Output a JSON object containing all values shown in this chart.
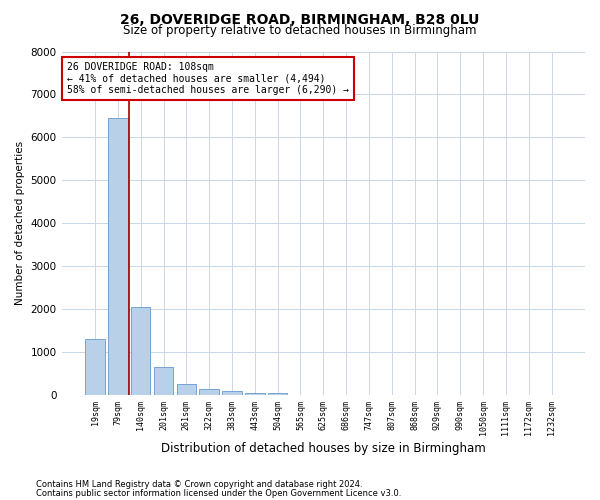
{
  "title1": "26, DOVERIDGE ROAD, BIRMINGHAM, B28 0LU",
  "title2": "Size of property relative to detached houses in Birmingham",
  "xlabel": "Distribution of detached houses by size in Birmingham",
  "ylabel": "Number of detached properties",
  "categories": [
    "19sqm",
    "79sqm",
    "140sqm",
    "201sqm",
    "261sqm",
    "322sqm",
    "383sqm",
    "443sqm",
    "504sqm",
    "565sqm",
    "625sqm",
    "686sqm",
    "747sqm",
    "807sqm",
    "868sqm",
    "929sqm",
    "990sqm",
    "1050sqm",
    "1111sqm",
    "1172sqm",
    "1232sqm"
  ],
  "values": [
    1300,
    6450,
    2050,
    650,
    270,
    140,
    100,
    55,
    55,
    0,
    0,
    0,
    0,
    0,
    0,
    0,
    0,
    0,
    0,
    0,
    0
  ],
  "bar_color": "#b8d0e8",
  "bar_edge_color": "#6699cc",
  "vline_color": "#aa0000",
  "vline_pos": 1.5,
  "annotation_text": "26 DOVERIDGE ROAD: 108sqm\n← 41% of detached houses are smaller (4,494)\n58% of semi-detached houses are larger (6,290) →",
  "annotation_box_edgecolor": "#cc0000",
  "ylim_max": 8000,
  "yticks": [
    0,
    1000,
    2000,
    3000,
    4000,
    5000,
    6000,
    7000,
    8000
  ],
  "footer1": "Contains HM Land Registry data © Crown copyright and database right 2024.",
  "footer2": "Contains public sector information licensed under the Open Government Licence v3.0.",
  "bg_color": "#ffffff",
  "grid_color": "#c8d8ea"
}
